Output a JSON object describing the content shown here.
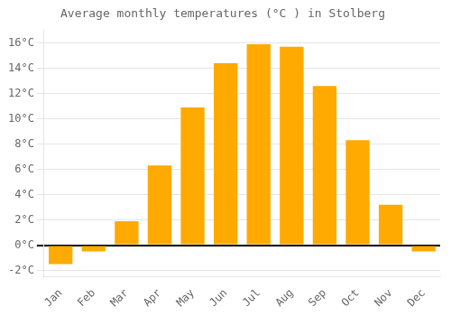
{
  "chart_data": {
    "type": "bar",
    "title": "Average monthly temperatures (°C ) in Stolberg",
    "categories": [
      "Jan",
      "Feb",
      "Mar",
      "Apr",
      "May",
      "Jun",
      "Jul",
      "Aug",
      "Sep",
      "Oct",
      "Nov",
      "Dec"
    ],
    "values": [
      -1.5,
      -0.5,
      1.9,
      6.3,
      10.9,
      14.4,
      15.9,
      15.7,
      12.6,
      8.3,
      3.2,
      -0.5
    ],
    "color": "#FFAA00",
    "ylim": [
      -2.5,
      17.0
    ],
    "yticks": [
      {
        "value": -2,
        "label": "-2°C"
      },
      {
        "value": 0,
        "label": "0°C"
      },
      {
        "value": 2,
        "label": "2°C"
      },
      {
        "value": 4,
        "label": "4°C"
      },
      {
        "value": 6,
        "label": "6°C"
      },
      {
        "value": 8,
        "label": "8°C"
      },
      {
        "value": 10,
        "label": "10°C"
      },
      {
        "value": 12,
        "label": "12°C"
      },
      {
        "value": 14,
        "label": "14°C"
      },
      {
        "value": 16,
        "label": "16°C"
      }
    ],
    "grid": true
  }
}
